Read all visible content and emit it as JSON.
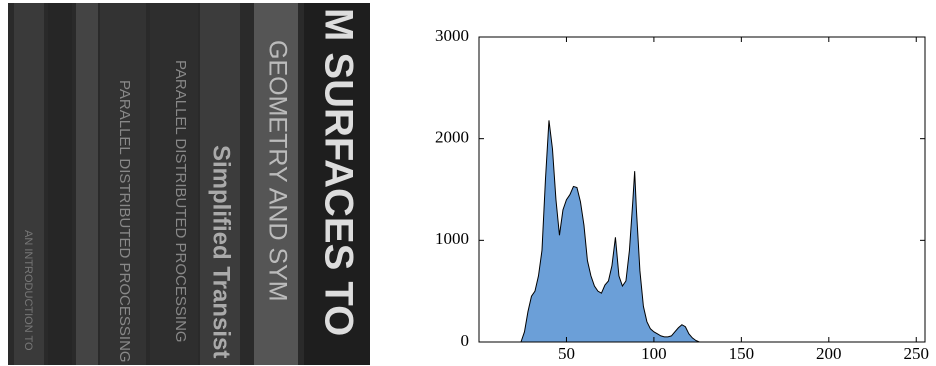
{
  "image": {
    "spine_texts": [
      "AN INTRODUCTION TO",
      "PARALLEL DISTRIBUTED PROCESSING",
      "PARALLEL DISTRIBUTED PROCESSING",
      "Simplified Transist",
      "GEOMETRY AND SYM",
      "M SURFACES TO"
    ]
  },
  "chart_data": {
    "type": "area",
    "color": "#6b9fd8",
    "x": [
      24,
      26,
      28,
      30,
      32,
      34,
      36,
      38,
      40,
      42,
      44,
      46,
      48,
      50,
      52,
      54,
      56,
      58,
      60,
      62,
      64,
      66,
      68,
      70,
      72,
      74,
      76,
      78,
      80,
      82,
      84,
      86,
      88,
      89,
      90,
      92,
      94,
      96,
      98,
      100,
      102,
      104,
      106,
      108,
      110,
      112,
      114,
      116,
      118,
      120,
      122,
      124,
      126
    ],
    "values": [
      0,
      100,
      300,
      450,
      500,
      650,
      900,
      1600,
      2180,
      1900,
      1400,
      1050,
      1300,
      1400,
      1450,
      1530,
      1520,
      1380,
      1150,
      800,
      650,
      550,
      500,
      480,
      560,
      600,
      750,
      1030,
      650,
      550,
      600,
      900,
      1400,
      1680,
      1300,
      700,
      350,
      200,
      130,
      100,
      80,
      60,
      50,
      50,
      60,
      100,
      140,
      170,
      150,
      80,
      40,
      15,
      0
    ],
    "xlim": [
      0,
      255
    ],
    "xticks": [
      50,
      100,
      150,
      200,
      250
    ],
    "ylim": [
      0,
      3000
    ],
    "yticks": [
      0,
      1000,
      2000,
      3000
    ]
  }
}
